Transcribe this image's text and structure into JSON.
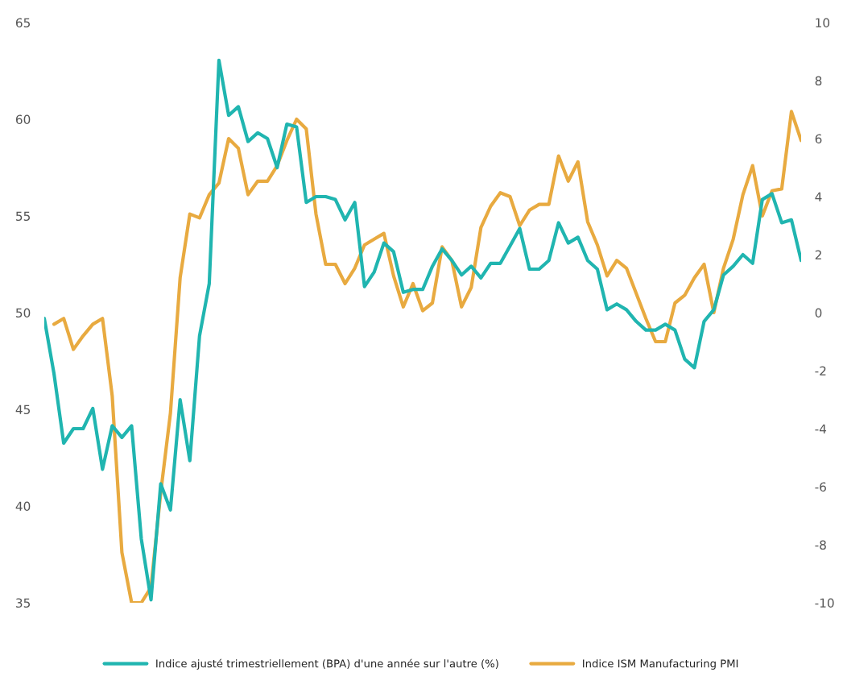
{
  "chart_data": {
    "type": "line",
    "categories": [
      null,
      null,
      null,
      null,
      null,
      null,
      null,
      null,
      null,
      null,
      null,
      null,
      null,
      null,
      null,
      null,
      null,
      null,
      null,
      null,
      null,
      null,
      null,
      null,
      null,
      null,
      null,
      null,
      null,
      null,
      null,
      null,
      null,
      null,
      null,
      null,
      null,
      null,
      null,
      null,
      null,
      null,
      null,
      null,
      null,
      null,
      null,
      null,
      null,
      null,
      null,
      null,
      null,
      null,
      null,
      null,
      null,
      null,
      null,
      null,
      null,
      null,
      null,
      null,
      null,
      null,
      null,
      null,
      null,
      null,
      null,
      null,
      null,
      null,
      null,
      null,
      null,
      null,
      null
    ],
    "series": [
      {
        "name": "Indice ajusté trimestriellement (BPA) d'une année sur l'autre (%)",
        "color": "#20b5b0",
        "axis": "y2",
        "values": [
          -0.2,
          -2.1,
          -4.5,
          -4.0,
          -4.0,
          -3.3,
          -5.4,
          -3.9,
          -4.3,
          -3.9,
          -7.8,
          -9.9,
          -5.9,
          -6.8,
          -3.0,
          -5.1,
          -0.8,
          1.0,
          8.7,
          6.8,
          7.1,
          5.9,
          6.2,
          6.0,
          5.0,
          6.5,
          6.4,
          3.8,
          4.0,
          4.0,
          3.9,
          3.2,
          3.8,
          0.9,
          1.4,
          2.4,
          2.1,
          0.7,
          0.8,
          0.8,
          1.6,
          2.2,
          1.8,
          1.3,
          1.6,
          1.2,
          1.7,
          1.7,
          2.3,
          2.9,
          1.5,
          1.5,
          1.8,
          3.1,
          2.4,
          2.6,
          1.8,
          1.5,
          0.1,
          0.3,
          0.1,
          -0.3,
          -0.6,
          -0.6,
          -0.4,
          -0.6,
          -1.6,
          -1.9,
          -0.3,
          0.1,
          1.3,
          1.6,
          2.0,
          1.7,
          3.9,
          4.1,
          3.1,
          3.2,
          1.8
        ]
      },
      {
        "name": "Indice ISM Manufacturing PMI",
        "color": "#e8aa40",
        "values": [
          null,
          49.4,
          49.7,
          48.1,
          48.8,
          49.4,
          49.7,
          45.7,
          37.6,
          35.0,
          35.0,
          35.8,
          40.7,
          44.8,
          51.8,
          55.1,
          54.9,
          56.1,
          56.7,
          59.0,
          58.5,
          56.1,
          56.8,
          56.8,
          57.6,
          58.9,
          60.0,
          59.5,
          55.1,
          52.5,
          52.5,
          51.5,
          52.3,
          53.5,
          53.8,
          54.1,
          51.9,
          50.3,
          51.5,
          50.1,
          50.5,
          53.4,
          52.7,
          50.3,
          51.3,
          54.4,
          55.5,
          56.2,
          56.0,
          54.5,
          55.3,
          55.6,
          55.6,
          58.1,
          56.8,
          57.8,
          54.7,
          53.5,
          51.9,
          52.7,
          52.3,
          51.0,
          49.7,
          48.5,
          48.5,
          50.5,
          50.9,
          51.8,
          52.5,
          50.0,
          52.3,
          53.8,
          56.1,
          57.6,
          55.0,
          56.3,
          56.4,
          60.4,
          58.9
        ]
      }
    ],
    "ylim": [
      35,
      65
    ],
    "yticks": [
      35,
      40,
      45,
      50,
      55,
      60,
      65
    ],
    "y2lim": [
      -10,
      10
    ],
    "y2ticks": [
      -10,
      -8,
      -6,
      -4,
      -2,
      0,
      2,
      4,
      6,
      8,
      10
    ],
    "grid": false,
    "legend": "bottom",
    "marker": "none",
    "line_style": "solid"
  }
}
